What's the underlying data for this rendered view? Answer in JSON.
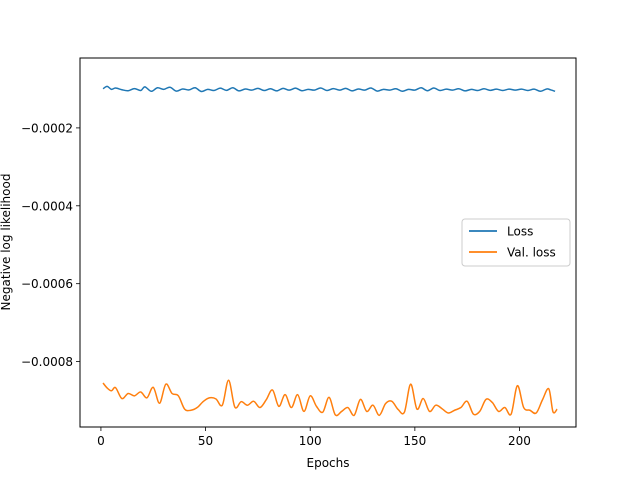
{
  "chart_data": {
    "type": "line",
    "title": "",
    "xlabel": "Epochs",
    "ylabel": "Negative log likelihood",
    "xlim": [
      -10,
      227
    ],
    "ylim": [
      -0.000968,
      -2.05e-05
    ],
    "xticks": [
      0,
      50,
      100,
      150,
      200
    ],
    "xtick_labels": [
      "0",
      "50",
      "100",
      "150",
      "200"
    ],
    "yticks": [
      -0.0002,
      -0.0004,
      -0.0006,
      -0.0008
    ],
    "ytick_labels": [
      "−0.0002",
      "−0.0004",
      "−0.0006",
      "−0.0008"
    ],
    "grid": false,
    "legend_position": "center-right",
    "series": [
      {
        "name": "Loss",
        "color": "#1f77b4",
        "x": [
          1,
          3,
          5,
          7,
          10,
          13,
          16,
          19,
          21,
          24,
          27,
          30,
          33,
          36,
          39,
          42,
          45,
          48,
          51,
          54,
          57,
          60,
          63,
          66,
          69,
          72,
          75,
          78,
          81,
          84,
          87,
          90,
          93,
          96,
          99,
          102,
          105,
          108,
          111,
          114,
          117,
          120,
          123,
          126,
          129,
          132,
          135,
          138,
          141,
          144,
          147,
          150,
          153,
          156,
          159,
          162,
          165,
          168,
          171,
          174,
          177,
          180,
          183,
          186,
          189,
          192,
          195,
          198,
          201,
          204,
          207,
          210,
          213,
          215,
          217
        ],
        "y": [
          -9.95e-05,
          -9.35e-05,
          -0.000101,
          -9.75e-05,
          -0.000102,
          -0.0001045,
          -9.9e-05,
          -0.000104,
          -9.45e-05,
          -0.000106,
          -9.7e-05,
          -0.000101,
          -9.55e-05,
          -0.0001055,
          -0.0001,
          -0.0001025,
          -9.7e-05,
          -0.0001065,
          -0.000101,
          -0.000104,
          -9.8e-05,
          -0.0001035,
          -9.7e-05,
          -0.000105,
          -0.0001,
          -0.000103,
          -9.85e-05,
          -0.000104,
          -9.95e-05,
          -0.000105,
          -9.85e-05,
          -0.000103,
          -9.8e-05,
          -0.0001045,
          -0.000101,
          -0.000103,
          -9.75e-05,
          -0.000104,
          -9.9e-05,
          -0.000103,
          -9.85e-05,
          -0.000105,
          -0.0001,
          -0.000103,
          -9.75e-05,
          -0.0001055,
          -0.000101,
          -0.000103,
          -9.95e-05,
          -0.000106,
          -0.000101,
          -0.000103,
          -9.7e-05,
          -0.0001045,
          -9.75e-05,
          -0.000104,
          -0.0001005,
          -0.000103,
          -9.95e-05,
          -0.000105,
          -0.000101,
          -0.000104,
          -9.95e-05,
          -0.0001035,
          -0.0001005,
          -0.000104,
          -0.0001005,
          -0.000103,
          -0.0001005,
          -0.000104,
          -0.0001005,
          -0.000106,
          -0.0001,
          -0.0001025,
          -0.000106
        ]
      },
      {
        "name": "Val. loss",
        "color": "#ff7f0e",
        "x": [
          1,
          3,
          5,
          7,
          10,
          13,
          16,
          19,
          22,
          25,
          28,
          31,
          34,
          37,
          40,
          43,
          46,
          49,
          52,
          55,
          58,
          61,
          64,
          67,
          70,
          73,
          76,
          79,
          82,
          85,
          88,
          91,
          94,
          97,
          100,
          103,
          106,
          109,
          112,
          115,
          118,
          121,
          124,
          127,
          130,
          133,
          136,
          139,
          142,
          145,
          148,
          151,
          154,
          157,
          160,
          163,
          166,
          169,
          172,
          175,
          178,
          181,
          184,
          187,
          190,
          193,
          196,
          199,
          202,
          205,
          208,
          211,
          214,
          216,
          218
        ],
        "y": [
          -0.000855,
          -0.000868,
          -0.000875,
          -0.000867,
          -0.000895,
          -0.000882,
          -0.000888,
          -0.000878,
          -0.000893,
          -0.000866,
          -0.000907,
          -0.000858,
          -0.000882,
          -0.000888,
          -0.000922,
          -0.000925,
          -0.000918,
          -0.000902,
          -0.000893,
          -0.000896,
          -0.000912,
          -0.000848,
          -0.000917,
          -0.000903,
          -0.000912,
          -0.000902,
          -0.000918,
          -0.000898,
          -0.000873,
          -0.000915,
          -0.000885,
          -0.000918,
          -0.000885,
          -0.000928,
          -0.000888,
          -0.000915,
          -0.00093,
          -0.000892,
          -0.000937,
          -0.000928,
          -0.000918,
          -0.000938,
          -0.000897,
          -0.000928,
          -0.000912,
          -0.000938,
          -0.000908,
          -0.000902,
          -0.000923,
          -0.00093,
          -0.000858,
          -0.000922,
          -0.000895,
          -0.000928,
          -0.000912,
          -0.000921,
          -0.000932,
          -0.000925,
          -0.000918,
          -0.000902,
          -0.000935,
          -0.000928,
          -0.000897,
          -0.000905,
          -0.000928,
          -0.000918,
          -0.000935,
          -0.000862,
          -0.000918,
          -0.000925,
          -0.000932,
          -0.000898,
          -0.00087,
          -0.000929,
          -0.000922
        ]
      }
    ]
  }
}
